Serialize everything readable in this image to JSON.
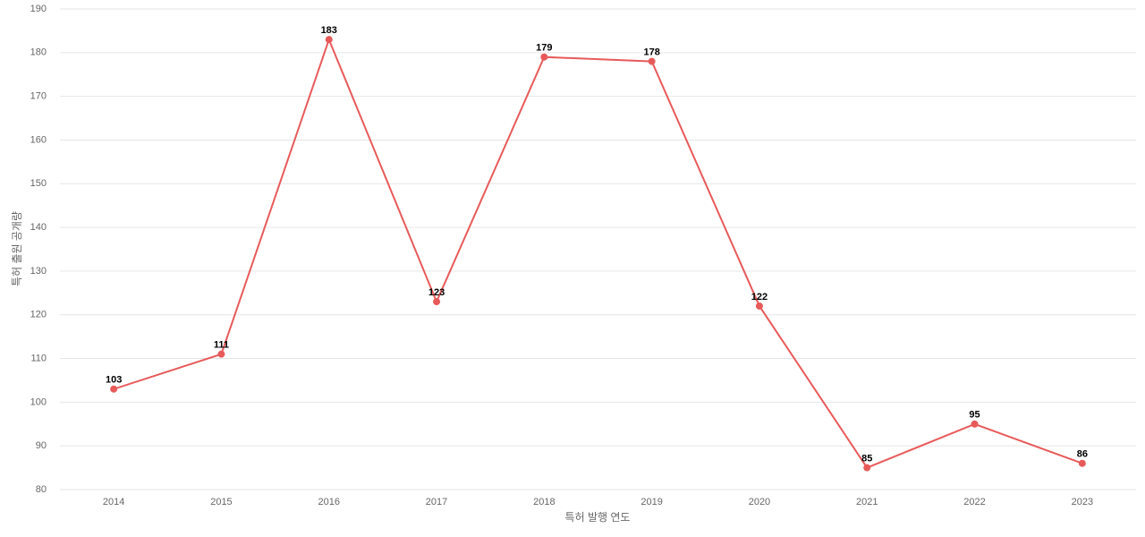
{
  "chart_data": {
    "type": "line",
    "x_label": "특허 발행 연도",
    "y_label": "특허 출원 공개량",
    "categories": [
      "2014",
      "2015",
      "2016",
      "2017",
      "2018",
      "2019",
      "2020",
      "2021",
      "2022",
      "2023"
    ],
    "series": [
      {
        "color": "#e85a5a",
        "values": [
          103,
          111,
          183,
          123,
          179,
          178,
          122,
          85,
          95,
          86
        ]
      }
    ],
    "ylim": [
      80,
      190
    ],
    "yticks": [
      80,
      90,
      100,
      110,
      120,
      130,
      140,
      150,
      160,
      170,
      180,
      190
    ],
    "grid": true
  }
}
